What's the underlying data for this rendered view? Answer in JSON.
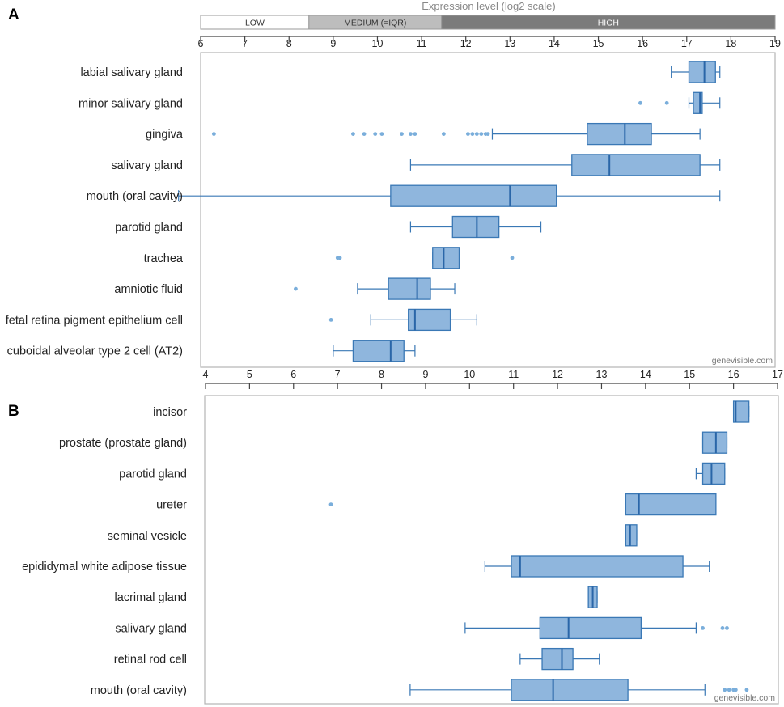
{
  "figure": {
    "axis_title": "Expression level (log2 scale)",
    "levels": [
      {
        "label": "LOW",
        "from": 6,
        "to": 8.45,
        "fill": "#ffffff",
        "text_color": "#333333"
      },
      {
        "label": "MEDIUM (=IQR)",
        "from": 8.45,
        "to": 11.45,
        "fill": "#bdbdbd",
        "text_color": "#333333"
      },
      {
        "label": "HIGH",
        "from": 11.45,
        "to": 19,
        "fill": "#7b7b7b",
        "text_color": "#ffffff"
      }
    ],
    "box_fill": "#8fb6dd",
    "box_stroke": "#3a78b5",
    "outlier_color": "#7aaedb"
  },
  "chart_data": [
    {
      "type": "boxplot",
      "panel": "A",
      "xlim": [
        6,
        19
      ],
      "ticks": [
        6,
        7,
        8,
        9,
        10,
        11,
        12,
        13,
        14,
        15,
        16,
        17,
        18,
        19
      ],
      "watermark": "genevisible.com",
      "categories": [
        {
          "label": "labial salivary gland",
          "whisker_low": 16.65,
          "q1": 17.05,
          "median": 17.4,
          "q3": 17.65,
          "whisker_high": 17.75,
          "outliers": []
        },
        {
          "label": "minor salivary gland",
          "whisker_low": 17.05,
          "q1": 17.15,
          "median": 17.3,
          "q3": 17.35,
          "whisker_high": 17.75,
          "outliers": [
            15.95,
            16.55
          ]
        },
        {
          "label": "gingiva",
          "whisker_low": 12.6,
          "q1": 14.75,
          "median": 15.6,
          "q3": 16.2,
          "whisker_high": 17.3,
          "outliers": [
            6.3,
            9.45,
            9.7,
            9.95,
            10.1,
            10.55,
            10.75,
            10.85,
            11.5,
            12.05,
            12.15,
            12.25,
            12.35,
            12.45,
            12.5
          ]
        },
        {
          "label": "salivary gland",
          "whisker_low": 10.75,
          "q1": 14.4,
          "median": 15.25,
          "q3": 17.3,
          "whisker_high": 17.75,
          "outliers": []
        },
        {
          "label": "mouth (oral cavity)",
          "whisker_low": 5.5,
          "q1": 10.3,
          "median": 13.0,
          "q3": 14.05,
          "whisker_high": 17.75,
          "outliers": []
        },
        {
          "label": "parotid gland",
          "whisker_low": 10.75,
          "q1": 11.7,
          "median": 12.25,
          "q3": 12.75,
          "whisker_high": 13.7,
          "outliers": []
        },
        {
          "label": "trachea",
          "whisker_low": 11.25,
          "q1": 11.25,
          "median": 11.5,
          "q3": 11.85,
          "whisker_high": 11.85,
          "outliers": [
            9.1,
            9.15,
            13.05
          ]
        },
        {
          "label": "amniotic fluid",
          "whisker_low": 9.55,
          "q1": 10.25,
          "median": 10.9,
          "q3": 11.2,
          "whisker_high": 11.75,
          "outliers": [
            8.15
          ]
        },
        {
          "label": "fetal retina pigment epithelium cell",
          "whisker_low": 9.85,
          "q1": 10.7,
          "median": 10.85,
          "q3": 11.65,
          "whisker_high": 12.25,
          "outliers": [
            8.95
          ]
        },
        {
          "label": "cuboidal alveolar type 2 cell (AT2)",
          "whisker_low": 9.0,
          "q1": 9.45,
          "median": 10.3,
          "q3": 10.6,
          "whisker_high": 10.85,
          "outliers": []
        }
      ]
    },
    {
      "type": "boxplot",
      "panel": "B",
      "xlim": [
        4,
        17
      ],
      "ticks": [
        4,
        5,
        6,
        7,
        8,
        9,
        10,
        11,
        12,
        13,
        14,
        15,
        16,
        17
      ],
      "watermark": "genevisible.com",
      "categories": [
        {
          "label": "incisor",
          "whisker_low": 16.0,
          "q1": 16.0,
          "median": 16.05,
          "q3": 16.35,
          "whisker_high": 16.35,
          "outliers": []
        },
        {
          "label": "prostate (prostate gland)",
          "whisker_low": 15.3,
          "q1": 15.3,
          "median": 15.6,
          "q3": 15.85,
          "whisker_high": 15.85,
          "outliers": []
        },
        {
          "label": "parotid gland",
          "whisker_low": 15.15,
          "q1": 15.3,
          "median": 15.5,
          "q3": 15.8,
          "whisker_high": 15.8,
          "outliers": []
        },
        {
          "label": "ureter",
          "whisker_low": 13.55,
          "q1": 13.55,
          "median": 13.85,
          "q3": 15.6,
          "whisker_high": 15.6,
          "outliers": [
            6.85
          ]
        },
        {
          "label": "seminal vesicle",
          "whisker_low": 13.55,
          "q1": 13.55,
          "median": 13.65,
          "q3": 13.8,
          "whisker_high": 13.8,
          "outliers": []
        },
        {
          "label": "epididymal white adipose tissue",
          "whisker_low": 10.35,
          "q1": 10.95,
          "median": 11.15,
          "q3": 14.85,
          "whisker_high": 15.45,
          "outliers": []
        },
        {
          "label": "lacrimal gland",
          "whisker_low": 12.7,
          "q1": 12.7,
          "median": 12.8,
          "q3": 12.9,
          "whisker_high": 12.9,
          "outliers": []
        },
        {
          "label": "salivary gland",
          "whisker_low": 9.9,
          "q1": 11.6,
          "median": 12.25,
          "q3": 13.9,
          "whisker_high": 15.15,
          "outliers": [
            15.3,
            15.75,
            15.85
          ]
        },
        {
          "label": "retinal rod cell",
          "whisker_low": 11.15,
          "q1": 11.65,
          "median": 12.1,
          "q3": 12.35,
          "whisker_high": 12.95,
          "outliers": []
        },
        {
          "label": "mouth (oral cavity)",
          "whisker_low": 8.65,
          "q1": 10.95,
          "median": 11.9,
          "q3": 13.6,
          "whisker_high": 15.35,
          "outliers": [
            15.8,
            15.9,
            16.0,
            16.05,
            16.3
          ]
        }
      ]
    }
  ]
}
